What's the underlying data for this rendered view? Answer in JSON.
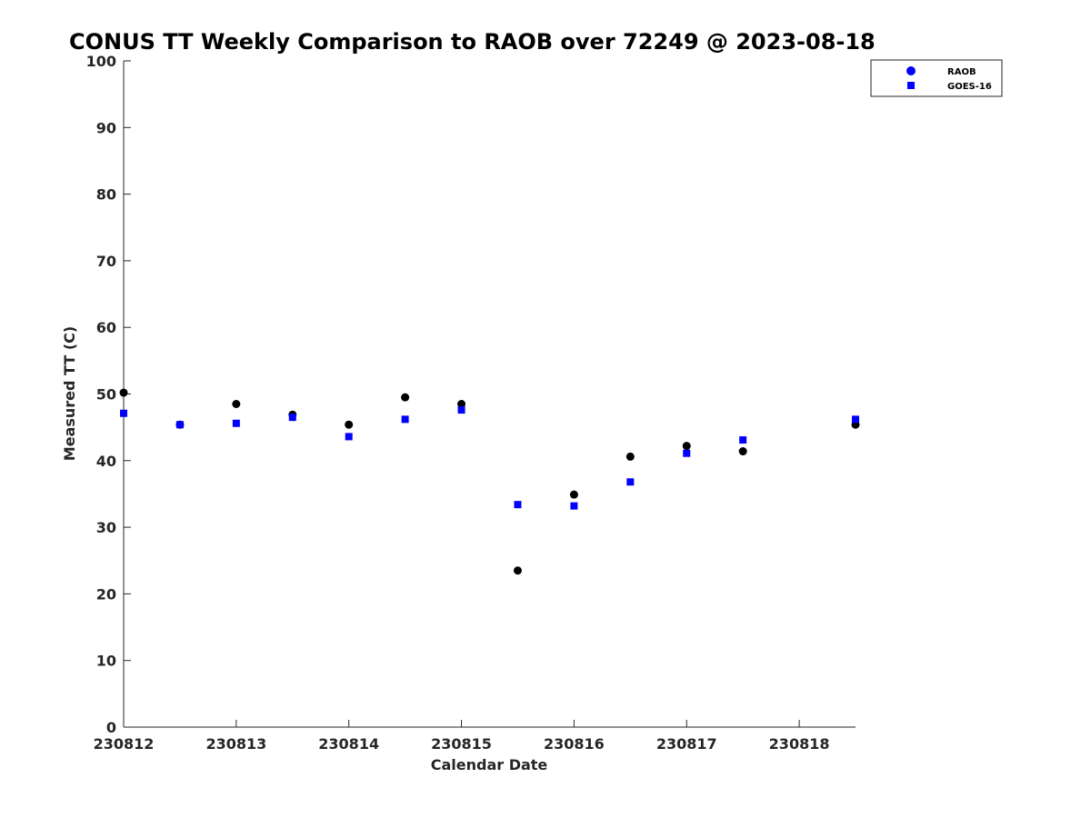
{
  "chart_data": {
    "type": "scatter",
    "title": "CONUS TT Weekly Comparison to RAOB over 72249 @ 2023-08-18",
    "xlabel": "Calendar Date",
    "ylabel": "Measured TT (C)",
    "xlim": [
      0,
      6.5
    ],
    "ylim": [
      0,
      100
    ],
    "x_tick_values": [
      0,
      1,
      2,
      3,
      4,
      5,
      6
    ],
    "x_tick_labels": [
      "230812",
      "230813",
      "230814",
      "230815",
      "230816",
      "230817",
      "230818"
    ],
    "y_ticks": [
      0,
      10,
      20,
      30,
      40,
      50,
      60,
      70,
      80,
      90,
      100
    ],
    "grid": false,
    "legend_position": "top-right",
    "series": [
      {
        "name": "RAOB",
        "marker": "circle",
        "color": "#000000",
        "legend_color": "#0000ff",
        "x": [
          0,
          0.5,
          1,
          1.5,
          2,
          2.5,
          3,
          3.5,
          4,
          4.5,
          5,
          5.5,
          6.5
        ],
        "y": [
          50.2,
          45.4,
          48.5,
          46.9,
          45.4,
          49.5,
          48.5,
          23.5,
          34.9,
          40.6,
          42.2,
          41.4,
          45.4
        ]
      },
      {
        "name": "GOES-16",
        "marker": "square",
        "color": "#0000ff",
        "x": [
          0,
          0.5,
          1,
          1.5,
          2,
          2.5,
          3,
          3.5,
          4,
          4.5,
          5,
          5.5,
          6.5
        ],
        "y": [
          47.1,
          45.4,
          45.6,
          46.5,
          43.6,
          46.2,
          47.6,
          33.4,
          33.2,
          36.8,
          41.1,
          43.1,
          46.2
        ]
      }
    ]
  }
}
